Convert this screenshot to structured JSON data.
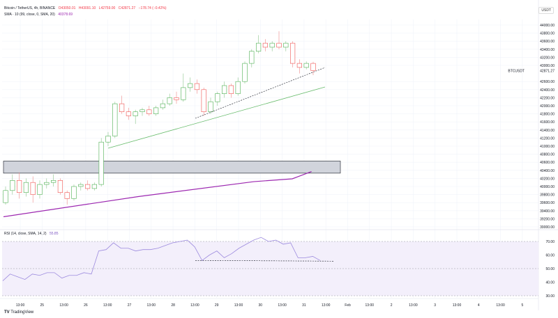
{
  "header": {
    "symbol": "Bitcoin / TetherUS, 4h, BINANCE",
    "open": "O43050.01",
    "high": "H43091.10",
    "low": "L42759.00",
    "close": "C42871.27",
    "change": "−178.74 (−0.42%)",
    "sma_label": "SMA · 10 (99, close, 0, SMA, 20)",
    "sma_value": "40378.69"
  },
  "currency": "USDT",
  "ticker_label": "BTCUSDT",
  "last_price": "42871.27",
  "rsi": {
    "label": "RSI (14, close, SMA, 14, 2)",
    "value": "55.85"
  },
  "footer": {
    "brand": "TradingView"
  },
  "colors": {
    "up": "#26a69a",
    "down": "#f23645",
    "sma": "#9c27b0",
    "rsi": "#7e57c2"
  },
  "chart_data": {
    "type": "candlestick",
    "price_ticks": [
      44000,
      43800,
      43600,
      43400,
      43200,
      43000,
      42600,
      42400,
      42200,
      42000,
      41800,
      41600,
      41400,
      41200,
      41000,
      40800,
      40600,
      40400,
      40200,
      40000,
      39800,
      39600,
      39400,
      39200,
      39000
    ],
    "ylim": [
      38990,
      44070
    ],
    "x_ticks": [
      "13:00",
      "25",
      "13:00",
      "26",
      "13:00",
      "27",
      "13:00",
      "28",
      "13:00",
      "29",
      "13:00",
      "30",
      "13:00",
      "31",
      "13:00",
      "Feb",
      "13:00",
      "2",
      "13:00",
      "3",
      "13:00",
      "4",
      "13:00",
      "5"
    ],
    "candles": [
      [
        39600,
        40000,
        39550,
        39900
      ],
      [
        39900,
        40300,
        39800,
        40150
      ],
      [
        40150,
        40350,
        39700,
        39850
      ],
      [
        39850,
        40200,
        39750,
        40100
      ],
      [
        40100,
        40250,
        39600,
        39800
      ],
      [
        39800,
        40150,
        39700,
        40050
      ],
      [
        40050,
        40200,
        39950,
        40100
      ],
      [
        40100,
        40300,
        40000,
        40150
      ],
      [
        40150,
        40200,
        39800,
        39850
      ],
      [
        39850,
        39900,
        39550,
        39700
      ],
      [
        39700,
        40050,
        39650,
        40000
      ],
      [
        40000,
        40100,
        39900,
        40050
      ],
      [
        40050,
        40150,
        39900,
        39950
      ],
      [
        39950,
        40100,
        39900,
        40050
      ],
      [
        40050,
        41200,
        40000,
        41100
      ],
      [
        41100,
        41350,
        41000,
        41250
      ],
      [
        41250,
        42100,
        41200,
        42050
      ],
      [
        42050,
        42250,
        41800,
        41850
      ],
      [
        41850,
        41950,
        41650,
        41750
      ],
      [
        41750,
        41900,
        41550,
        41850
      ],
      [
        41850,
        41950,
        41750,
        41900
      ],
      [
        41900,
        42000,
        41750,
        41800
      ],
      [
        41800,
        42000,
        41750,
        41950
      ],
      [
        41950,
        42150,
        41900,
        42050
      ],
      [
        42050,
        42300,
        42000,
        42200
      ],
      [
        42200,
        42350,
        42050,
        42150
      ],
      [
        42150,
        42800,
        42100,
        42450
      ],
      [
        42450,
        42700,
        42350,
        42550
      ],
      [
        42550,
        42650,
        42300,
        42400
      ],
      [
        42400,
        42450,
        41750,
        41850
      ],
      [
        41850,
        42200,
        41800,
        42100
      ],
      [
        42100,
        42350,
        42000,
        42300
      ],
      [
        42300,
        42600,
        42200,
        42500
      ],
      [
        42500,
        42550,
        42200,
        42300
      ],
      [
        42300,
        42700,
        42250,
        42600
      ],
      [
        42600,
        43100,
        42550,
        43050
      ],
      [
        43050,
        43400,
        42950,
        43350
      ],
      [
        43350,
        43750,
        43300,
        43550
      ],
      [
        43550,
        43650,
        43350,
        43450
      ],
      [
        43450,
        43600,
        43350,
        43550
      ],
      [
        43550,
        43850,
        43400,
        43450
      ],
      [
        43450,
        43600,
        43350,
        43550
      ],
      [
        43550,
        43600,
        42950,
        43050
      ],
      [
        43050,
        43150,
        42800,
        42950
      ],
      [
        42950,
        43100,
        42900,
        43050
      ],
      [
        43050,
        43091,
        42759,
        42871
      ]
    ],
    "sma": [
      [
        0,
        39250
      ],
      [
        0.42,
        39750
      ],
      [
        0.78,
        40120
      ],
      [
        0.9,
        40190
      ],
      [
        0.96,
        40370
      ]
    ],
    "zone": [
      40330,
      40630
    ],
    "rsi_values": [
      41,
      46,
      44,
      42,
      46,
      45,
      47,
      47,
      43,
      45,
      45,
      47,
      46,
      63,
      64,
      69,
      65,
      65,
      63,
      64,
      64,
      65,
      67,
      69,
      70,
      71,
      66,
      56,
      60,
      63,
      58,
      61,
      65,
      68,
      71,
      73,
      70,
      71,
      68,
      69,
      58,
      58,
      59,
      56
    ],
    "rsi_levels": [
      70,
      50,
      30
    ]
  }
}
